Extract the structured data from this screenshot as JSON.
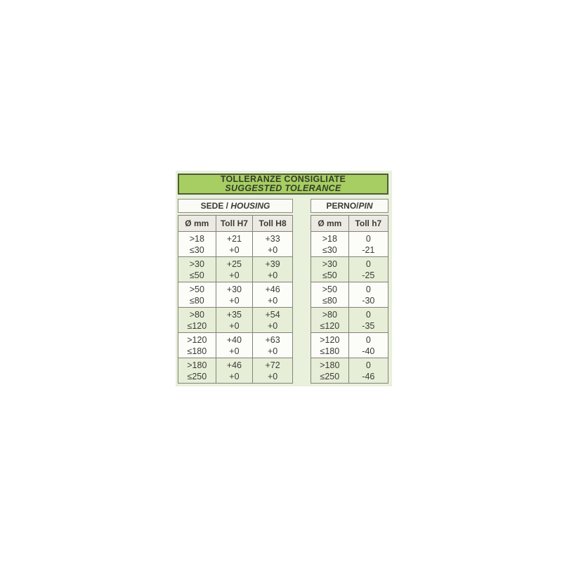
{
  "title": {
    "line1": "TOLLERANZE CONSIGLIATE",
    "line2": "SUGGESTED TOLERANCE"
  },
  "tables": [
    {
      "id": "housing",
      "header_normal": "SEDE / ",
      "header_italic": "HOUSING",
      "columns": [
        "Ø mm",
        "Toll H7",
        "Toll H8"
      ],
      "rows": [
        [
          [
            ">18",
            "≤30"
          ],
          [
            "+21",
            "+0"
          ],
          [
            "+33",
            "+0"
          ]
        ],
        [
          [
            ">30",
            "≤50"
          ],
          [
            "+25",
            "+0"
          ],
          [
            "+39",
            "+0"
          ]
        ],
        [
          [
            ">50",
            "≤80"
          ],
          [
            "+30",
            "+0"
          ],
          [
            "+46",
            "+0"
          ]
        ],
        [
          [
            ">80",
            "≤120"
          ],
          [
            "+35",
            "+0"
          ],
          [
            "+54",
            "+0"
          ]
        ],
        [
          [
            ">120",
            "≤180"
          ],
          [
            "+40",
            "+0"
          ],
          [
            "+63",
            "+0"
          ]
        ],
        [
          [
            ">180",
            "≤250"
          ],
          [
            "+46",
            "+0"
          ],
          [
            "+72",
            "+0"
          ]
        ]
      ]
    },
    {
      "id": "pin",
      "header_normal": "PERNO/",
      "header_italic": "PIN",
      "columns": [
        "Ø mm",
        "Toll h7"
      ],
      "rows": [
        [
          [
            ">18",
            "≤30"
          ],
          [
            "0",
            "-21"
          ]
        ],
        [
          [
            ">30",
            "≤50"
          ],
          [
            "0",
            "-25"
          ]
        ],
        [
          [
            ">50",
            "≤80"
          ],
          [
            "0",
            "-30"
          ]
        ],
        [
          [
            ">80",
            "≤120"
          ],
          [
            "0",
            "-35"
          ]
        ],
        [
          [
            ">120",
            "≤180"
          ],
          [
            "0",
            "-40"
          ]
        ],
        [
          [
            ">180",
            "≤250"
          ],
          [
            "0",
            "-46"
          ]
        ]
      ]
    }
  ],
  "colors": {
    "page_bg": "#ffffff",
    "panel_bg": "#e9f0db",
    "title_bg": "#a6ce62",
    "title_border": "#4f5c39",
    "title_text": "#353d28",
    "subheader_bg": "#fafaf6",
    "header_cell_bg": "#edeae3",
    "row_white": "#fcfcf8",
    "row_green": "#e6eed7",
    "grid_line": "#82827a",
    "text": "#3b3b35"
  }
}
